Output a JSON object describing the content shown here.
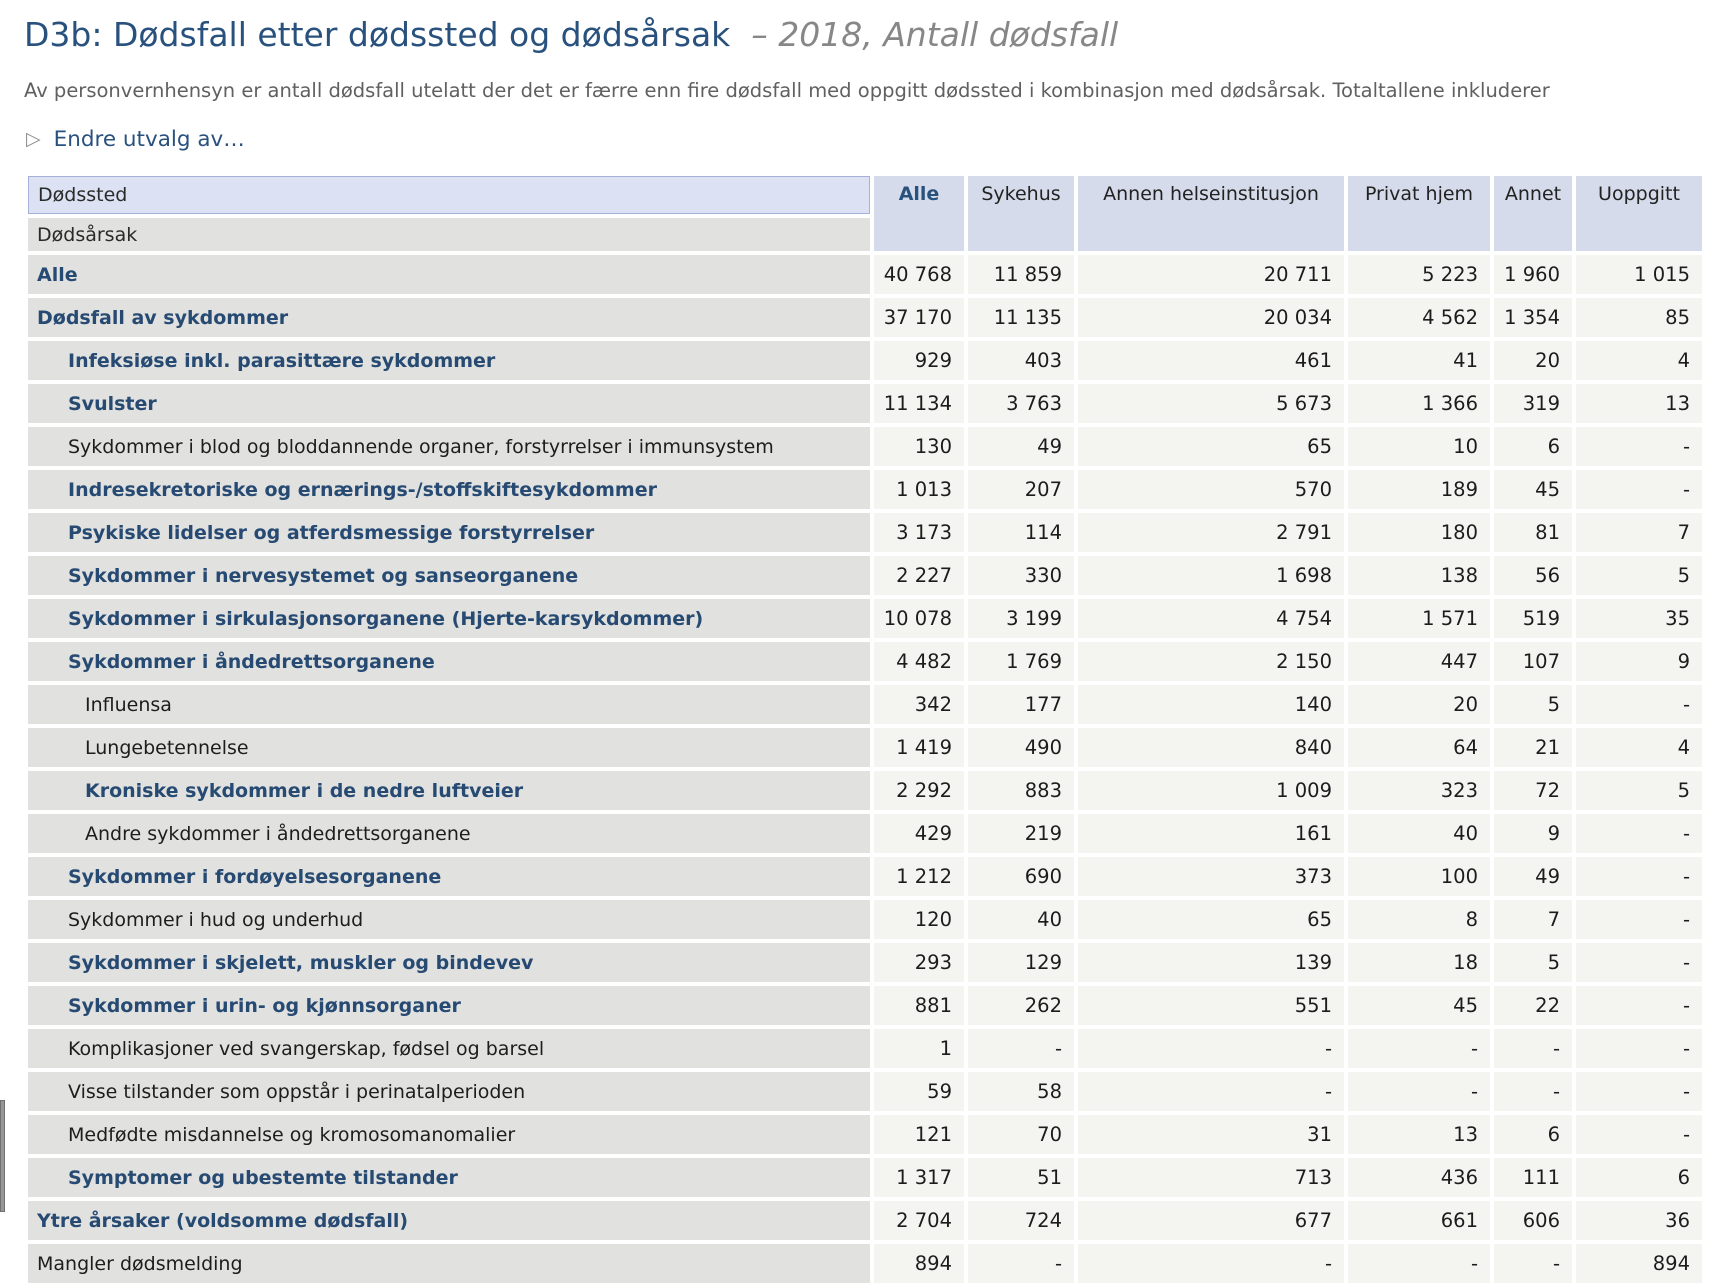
{
  "header": {
    "title": "D3b: Dødsfall etter dødssted og dødsårsak",
    "title_variant": "– 2018, Antall dødsfall",
    "privacy_note": "Av personvernhensyn er antall dødsfall utelatt der det er færre enn fire dødsfall med oppgitt dødssted i kombinasjon med dødsårsak. Totaltallene inkluderer",
    "expand_link": "Endre utvalg av…",
    "expand_icon": "disclosure-triangle-right"
  },
  "colors": {
    "title_blue": "#29517d",
    "label_navy": "#274a73",
    "label_cell_bg": "#e1e1df",
    "value_cell_bg": "#f4f4f1",
    "column_header_bg": "#d5dbea",
    "selected_corner_bg": "#dce2f3",
    "selected_corner_border": "#a3b2d6"
  },
  "table": {
    "column_dimension_label": "Dødssted",
    "row_dimension_label": "Dødsårsak",
    "columns": [
      "Alle",
      "Sykehus",
      "Annen helseinstitusjon",
      "Privat hjem",
      "Annet",
      "Uoppgitt"
    ],
    "rows": [
      {
        "label": "Alle",
        "level": 0,
        "bold": true,
        "values": [
          "40 768",
          "11 859",
          "20 711",
          "5 223",
          "1 960",
          "1 015"
        ]
      },
      {
        "label": "Dødsfall av sykdommer",
        "level": 0,
        "bold": true,
        "values": [
          "37 170",
          "11 135",
          "20 034",
          "4 562",
          "1 354",
          "85"
        ]
      },
      {
        "label": "Infeksiøse inkl. parasittære sykdommer",
        "level": 1,
        "bold": true,
        "values": [
          "929",
          "403",
          "461",
          "41",
          "20",
          "4"
        ]
      },
      {
        "label": "Svulster",
        "level": 1,
        "bold": true,
        "values": [
          "11 134",
          "3 763",
          "5 673",
          "1 366",
          "319",
          "13"
        ]
      },
      {
        "label": "Sykdommer i blod og bloddannende organer, forstyrrelser i immunsystem",
        "level": 1,
        "bold": false,
        "values": [
          "130",
          "49",
          "65",
          "10",
          "6",
          "-"
        ]
      },
      {
        "label": "Indresekretoriske og ernærings-/stoffskiftesykdommer",
        "level": 1,
        "bold": true,
        "values": [
          "1 013",
          "207",
          "570",
          "189",
          "45",
          "-"
        ]
      },
      {
        "label": "Psykiske lidelser og atferdsmessige forstyrrelser",
        "level": 1,
        "bold": true,
        "values": [
          "3 173",
          "114",
          "2 791",
          "180",
          "81",
          "7"
        ]
      },
      {
        "label": "Sykdommer i nervesystemet og sanseorganene",
        "level": 1,
        "bold": true,
        "values": [
          "2 227",
          "330",
          "1 698",
          "138",
          "56",
          "5"
        ]
      },
      {
        "label": "Sykdommer i sirkulasjonsorganene (Hjerte-karsykdommer)",
        "level": 1,
        "bold": true,
        "values": [
          "10 078",
          "3 199",
          "4 754",
          "1 571",
          "519",
          "35"
        ]
      },
      {
        "label": "Sykdommer i åndedrettsorganene",
        "level": 1,
        "bold": true,
        "values": [
          "4 482",
          "1 769",
          "2 150",
          "447",
          "107",
          "9"
        ]
      },
      {
        "label": "Influensa",
        "level": 2,
        "bold": false,
        "values": [
          "342",
          "177",
          "140",
          "20",
          "5",
          "-"
        ]
      },
      {
        "label": "Lungebetennelse",
        "level": 2,
        "bold": false,
        "values": [
          "1 419",
          "490",
          "840",
          "64",
          "21",
          "4"
        ]
      },
      {
        "label": "Kroniske sykdommer i de nedre luftveier",
        "level": 2,
        "bold": true,
        "values": [
          "2 292",
          "883",
          "1 009",
          "323",
          "72",
          "5"
        ]
      },
      {
        "label": "Andre sykdommer i åndedrettsorganene",
        "level": 2,
        "bold": false,
        "values": [
          "429",
          "219",
          "161",
          "40",
          "9",
          "-"
        ]
      },
      {
        "label": "Sykdommer i fordøyelsesorganene",
        "level": 1,
        "bold": true,
        "values": [
          "1 212",
          "690",
          "373",
          "100",
          "49",
          "-"
        ]
      },
      {
        "label": "Sykdommer i hud og underhud",
        "level": 1,
        "bold": false,
        "values": [
          "120",
          "40",
          "65",
          "8",
          "7",
          "-"
        ]
      },
      {
        "label": "Sykdommer i skjelett, muskler og bindevev",
        "level": 1,
        "bold": true,
        "values": [
          "293",
          "129",
          "139",
          "18",
          "5",
          "-"
        ]
      },
      {
        "label": "Sykdommer i urin- og kjønnsorganer",
        "level": 1,
        "bold": true,
        "values": [
          "881",
          "262",
          "551",
          "45",
          "22",
          "-"
        ]
      },
      {
        "label": "Komplikasjoner ved svangerskap, fødsel og barsel",
        "level": 1,
        "bold": false,
        "values": [
          "1",
          "-",
          "-",
          "-",
          "-",
          "-"
        ]
      },
      {
        "label": "Visse tilstander som oppstår i perinatalperioden",
        "level": 1,
        "bold": false,
        "values": [
          "59",
          "58",
          "-",
          "-",
          "-",
          "-"
        ]
      },
      {
        "label": "Medfødte misdannelse og kromosomanomalier",
        "level": 1,
        "bold": false,
        "values": [
          "121",
          "70",
          "31",
          "13",
          "6",
          "-"
        ]
      },
      {
        "label": "Symptomer og ubestemte tilstander",
        "level": 1,
        "bold": true,
        "values": [
          "1 317",
          "51",
          "713",
          "436",
          "111",
          "6"
        ]
      },
      {
        "label": "Ytre årsaker (voldsomme dødsfall)",
        "level": 0,
        "bold": true,
        "values": [
          "2 704",
          "724",
          "677",
          "661",
          "606",
          "36"
        ]
      },
      {
        "label": "Mangler dødsmelding",
        "level": 0,
        "bold": false,
        "values": [
          "894",
          "-",
          "-",
          "-",
          "-",
          "894"
        ]
      }
    ]
  }
}
